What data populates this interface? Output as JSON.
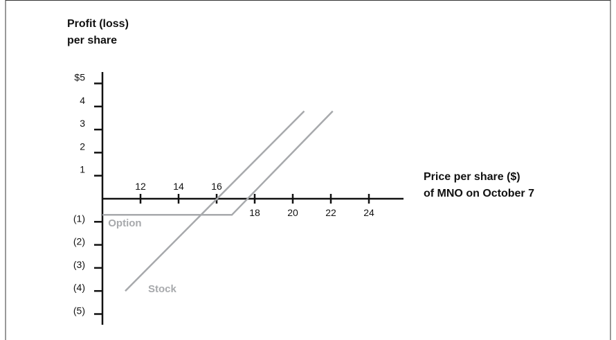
{
  "chart_data": {
    "type": "line",
    "title_line1": "Profit (loss)",
    "title_line2": "per share",
    "xlabel_line1": "Price per share ($)",
    "xlabel_line2": "of MNO on October 7",
    "x_ticks": [
      {
        "value": 12,
        "label": "12"
      },
      {
        "value": 14,
        "label": "14"
      },
      {
        "value": 16,
        "label": "16"
      },
      {
        "value": 18,
        "label": "18"
      },
      {
        "value": 20,
        "label": "20"
      },
      {
        "value": 22,
        "label": "22"
      },
      {
        "value": 24,
        "label": "24"
      }
    ],
    "y_ticks": [
      {
        "value": 5,
        "label": "$5"
      },
      {
        "value": 4,
        "label": "4"
      },
      {
        "value": 3,
        "label": "3"
      },
      {
        "value": 2,
        "label": "2"
      },
      {
        "value": 1,
        "label": "1"
      },
      {
        "value": -1,
        "label": "(1)"
      },
      {
        "value": -2,
        "label": "(2)"
      },
      {
        "value": -3,
        "label": "(3)"
      },
      {
        "value": -4,
        "label": "(4)"
      },
      {
        "value": -5,
        "label": "(5)"
      }
    ],
    "xlim": [
      10,
      26
    ],
    "ylim": [
      -5.5,
      5.5
    ],
    "series": [
      {
        "name": "Option",
        "color": "#a7a9ac",
        "points": [
          [
            10,
            -0.7
          ],
          [
            16.8,
            -0.7
          ],
          [
            22.1,
            3.8
          ]
        ]
      },
      {
        "name": "Stock",
        "color": "#a7a9ac",
        "points": [
          [
            11.2,
            -4
          ],
          [
            20.6,
            3.8
          ]
        ]
      }
    ],
    "annotations": [
      {
        "text": "Option",
        "x": 10.3,
        "y": -1.05
      },
      {
        "text": "Stock",
        "x": 12.4,
        "y": -3.9
      }
    ]
  }
}
